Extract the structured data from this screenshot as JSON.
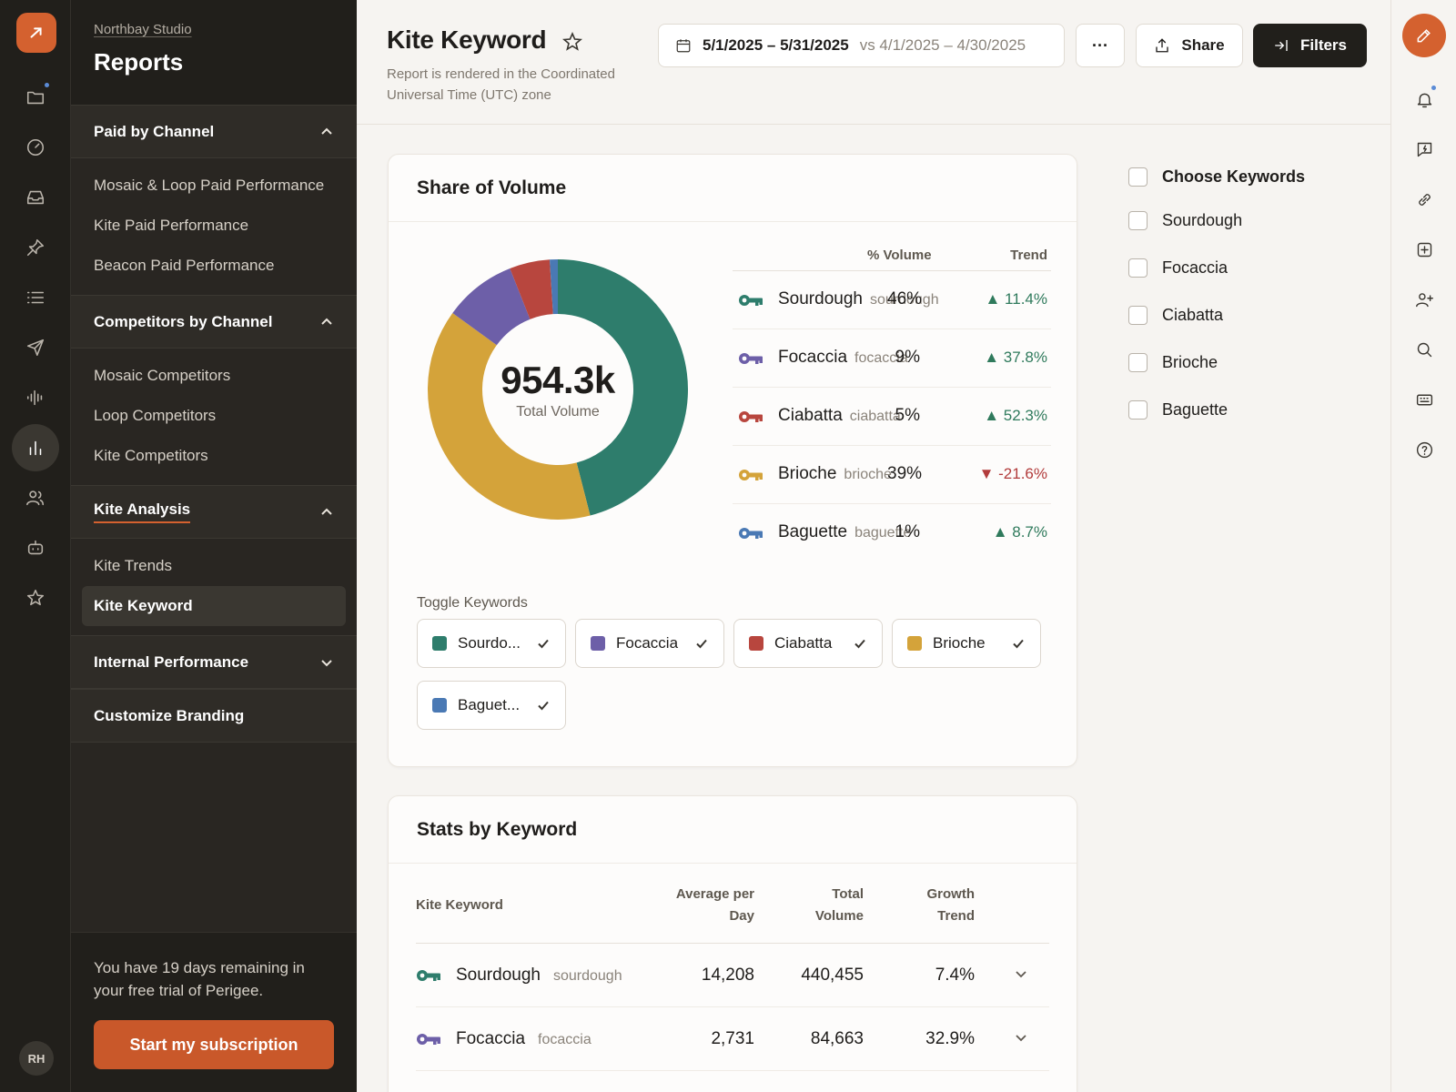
{
  "sidebar": {
    "org": "Northbay Studio",
    "title": "Reports",
    "sections": [
      {
        "label": "Paid by Channel",
        "items": [
          "Mosaic & Loop Paid Performance",
          "Kite Paid Performance",
          "Beacon Paid Performance"
        ]
      },
      {
        "label": "Competitors by Channel",
        "items": [
          "Mosaic Competitors",
          "Loop Competitors",
          "Kite Competitors"
        ]
      },
      {
        "label": "Kite Analysis",
        "items": [
          "Kite Trends",
          "Kite Keyword"
        ]
      },
      {
        "label": "Internal Performance"
      },
      {
        "label": "Customize Branding"
      }
    ],
    "trial_text": "You have 19 days remaining in your free trial of Perigee.",
    "subscribe_label": "Start my subscription",
    "avatar_initials": "RH"
  },
  "header": {
    "title": "Kite Keyword",
    "timezone_note": "Report is rendered in the Coordinated Universal Time (UTC) zone",
    "date_range": "5/1/2025 – 5/31/2025",
    "compare_range": "vs 4/1/2025 – 4/30/2025",
    "more_label": "···",
    "share_label": "Share",
    "filters_label": "Filters"
  },
  "share_of_volume": {
    "title": "Share of Volume",
    "total_value": "954.3k",
    "total_label": "Total Volume",
    "col_volume": "% Volume",
    "col_trend": "Trend",
    "toggle_label": "Toggle Keywords",
    "rows": [
      {
        "name": "Sourdough",
        "slug": "sourdough",
        "pct": "46%",
        "trend": "11.4%",
        "dir": "up",
        "color": "#2e7d6c"
      },
      {
        "name": "Focaccia",
        "slug": "focaccia",
        "pct": "9%",
        "trend": "37.8%",
        "dir": "up",
        "color": "#6d5fa8"
      },
      {
        "name": "Ciabatta",
        "slug": "ciabatta",
        "pct": "5%",
        "trend": "52.3%",
        "dir": "up",
        "color": "#b8463e"
      },
      {
        "name": "Brioche",
        "slug": "brioche",
        "pct": "39%",
        "trend": "-21.6%",
        "dir": "down",
        "color": "#d4a33a"
      },
      {
        "name": "Baguette",
        "slug": "baguette",
        "pct": "1%",
        "trend": "8.7%",
        "dir": "up",
        "color": "#4a79b4"
      }
    ],
    "chips": [
      "Sourdo...",
      "Focaccia",
      "Ciabatta",
      "Brioche",
      "Baguet..."
    ]
  },
  "chart_data": {
    "type": "pie",
    "categories": [
      "Sourdough",
      "Brioche",
      "Focaccia",
      "Ciabatta",
      "Baguette"
    ],
    "values": [
      46,
      39,
      9,
      5,
      1
    ],
    "colors": [
      "#2e7d6c",
      "#d4a33a",
      "#6d5fa8",
      "#b8463e",
      "#4a79b4"
    ]
  },
  "chooser": {
    "title": "Choose Keywords",
    "items": [
      "Sourdough",
      "Focaccia",
      "Ciabatta",
      "Brioche",
      "Baguette"
    ]
  },
  "stats": {
    "title": "Stats by Keyword",
    "col_keyword": "Kite Keyword",
    "col_avg_1": "Average per",
    "col_avg_2": "Day",
    "col_total_1": "Total",
    "col_total_2": "Volume",
    "col_growth_1": "Growth",
    "col_growth_2": "Trend",
    "rows": [
      {
        "name": "Sourdough",
        "slug": "sourdough",
        "avg": "14,208",
        "total": "440,455",
        "growth": "7.4%",
        "color": "#2e7d6c"
      },
      {
        "name": "Focaccia",
        "slug": "focaccia",
        "avg": "2,731",
        "total": "84,663",
        "growth": "32.9%",
        "color": "#6d5fa8"
      }
    ]
  }
}
